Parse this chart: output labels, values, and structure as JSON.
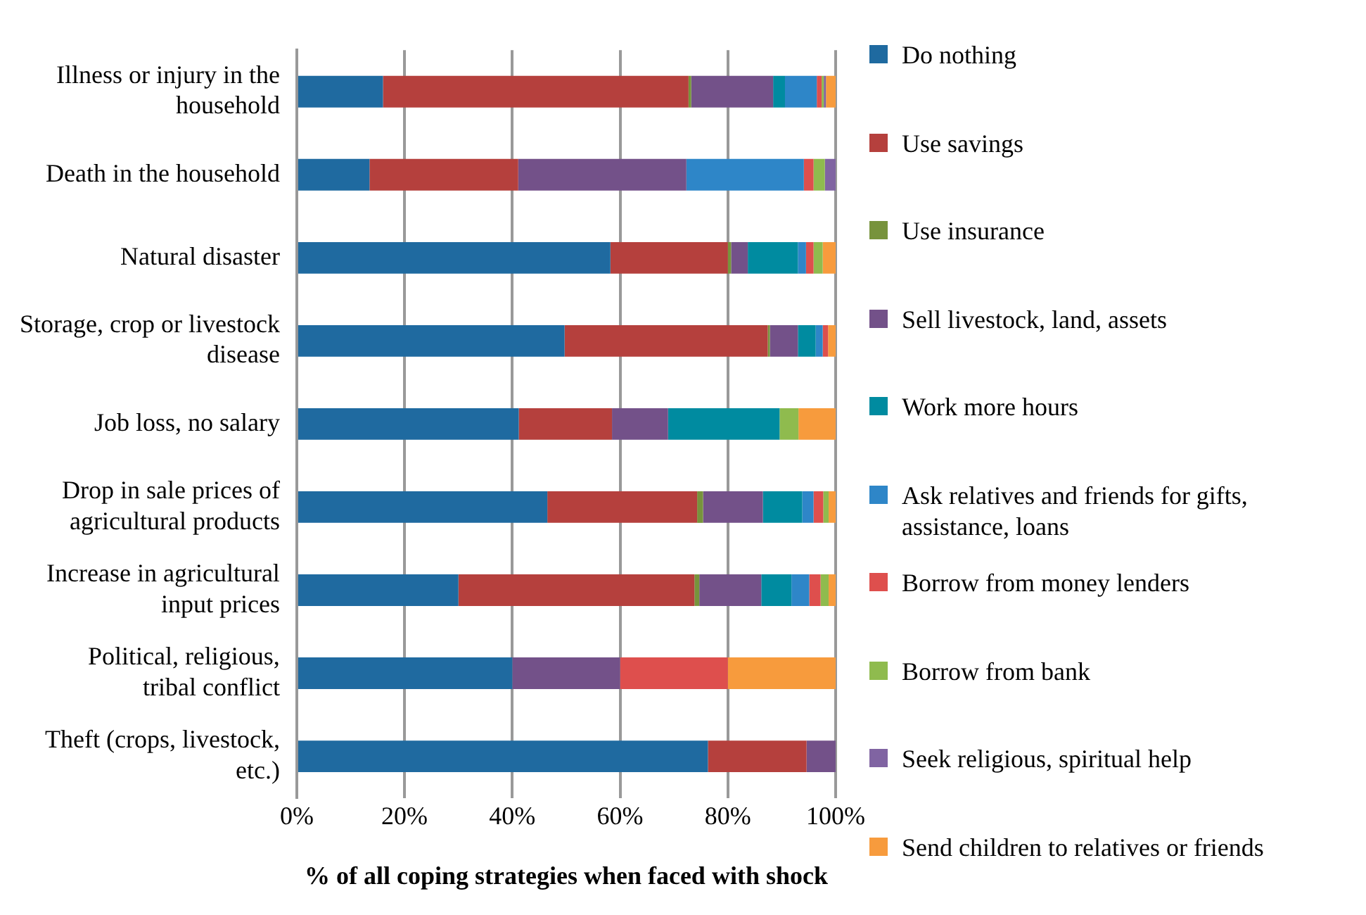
{
  "chart_data": {
    "type": "bar",
    "orientation": "horizontal",
    "stacked": true,
    "xlabel": "% of all coping strategies when faced with shock",
    "categories": [
      "Illness or injury in the household",
      "Death in the household",
      "Natural disaster",
      "Storage, crop or livestock disease",
      "Job loss, no salary",
      "Drop in sale prices of agricultural products",
      "Increase in agricultural input prices",
      "Political, religious, tribal conflict",
      "Theft (crops, livestock, etc.)"
    ],
    "xlim": [
      0,
      100
    ],
    "xticks": [
      {
        "value": 0,
        "label": "0%"
      },
      {
        "value": 20,
        "label": "20%"
      },
      {
        "value": 40,
        "label": "40%"
      },
      {
        "value": 60,
        "label": "60%"
      },
      {
        "value": 80,
        "label": "80%"
      },
      {
        "value": 100,
        "label": "100%"
      }
    ],
    "grid": "x",
    "legend": "right",
    "series": [
      {
        "name": "Do nothing",
        "color": "#1f6aa0",
        "values": [
          16.0,
          13.5,
          58.2,
          49.7,
          41.2,
          46.5,
          30.0,
          40,
          76.3
        ]
      },
      {
        "name": "Use savings",
        "color": "#b5403d",
        "values": [
          56.7,
          27.6,
          21.8,
          37.7,
          17.3,
          27.8,
          43.8,
          null,
          18.3
        ]
      },
      {
        "name": "Use insurance",
        "color": "#77933c",
        "values": [
          0.5,
          null,
          0.6,
          0.4,
          null,
          1.1,
          0.9,
          null,
          null
        ]
      },
      {
        "name": "Sell livestock, land, assets",
        "color": "#735189",
        "values": [
          15.2,
          31.2,
          3.1,
          5.2,
          10.4,
          11.1,
          11.5,
          20,
          5.4
        ]
      },
      {
        "name": "Work more hours",
        "color": "#008ba0",
        "values": [
          2.2,
          null,
          9.3,
          3.3,
          20.7,
          7.3,
          5.6,
          null,
          null
        ]
      },
      {
        "name": "Ask relatives and friends for gifts, assistance, loans",
        "color": "#2e86c8",
        "values": [
          5.9,
          21.8,
          1.5,
          1.3,
          null,
          2.1,
          3.3,
          null,
          null
        ]
      },
      {
        "name": "Borrow from money lenders",
        "color": "#de4f4d",
        "values": [
          0.9,
          1.8,
          1.4,
          1.0,
          null,
          1.8,
          2.1,
          20,
          null
        ]
      },
      {
        "name": "Borrow from bank",
        "color": "#8fbb4e",
        "values": [
          0.4,
          2.1,
          1.7,
          null,
          3.5,
          1.0,
          1.5,
          null,
          null
        ]
      },
      {
        "name": "Seek religious, spiritual help",
        "color": "#8064a2",
        "values": [
          0.4,
          2.0,
          null,
          null,
          null,
          null,
          null,
          null,
          null
        ]
      },
      {
        "name": "Send children to relatives or friends",
        "color": "#f79b3d",
        "values": [
          1.8,
          null,
          2.4,
          1.4,
          6.9,
          1.3,
          1.3,
          20,
          null
        ]
      }
    ]
  }
}
